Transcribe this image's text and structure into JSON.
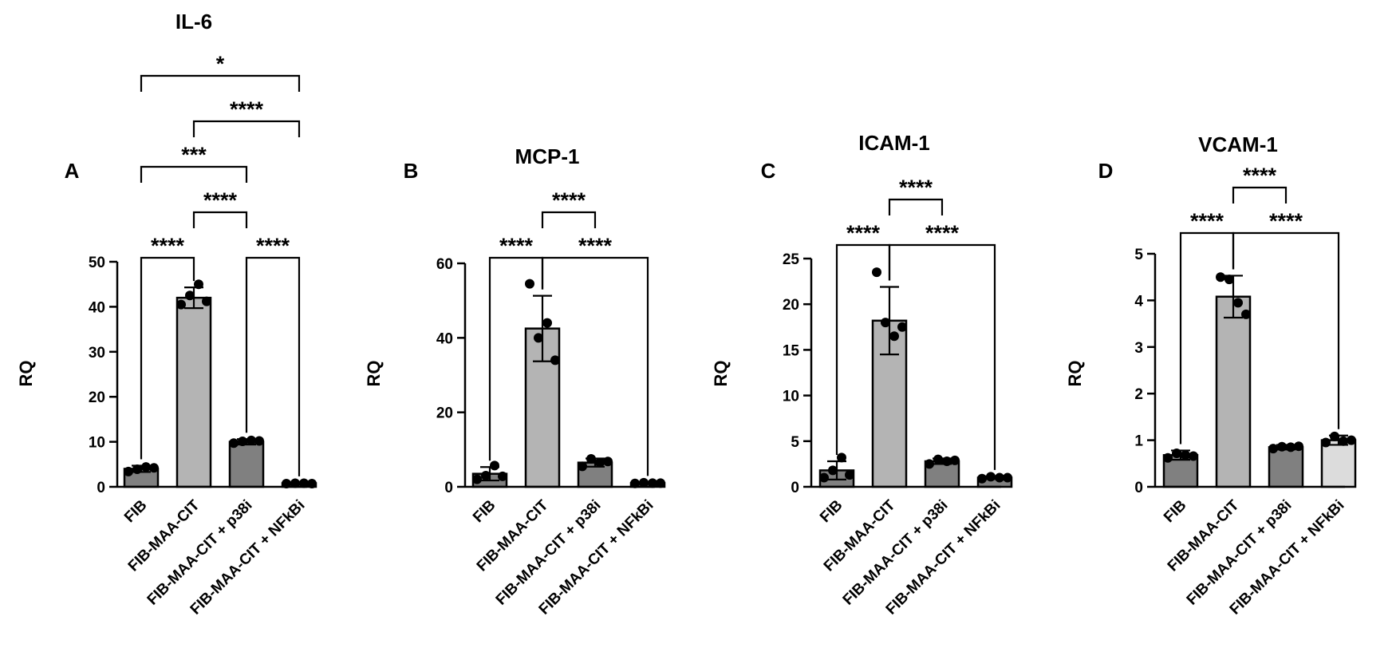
{
  "chart_data": [
    {
      "type": "bar",
      "panel_label": "A",
      "title": "IL-6",
      "ylabel": "RQ",
      "ylim": [
        0,
        50
      ],
      "yticks": [
        0,
        10,
        20,
        30,
        40,
        50
      ],
      "categories": [
        "FIB",
        "FIB-MAA-CIT",
        "FIB-MAA-CIT + p38i",
        "FIB-MAA-CIT + NFkBi"
      ],
      "values": [
        4.0,
        42.0,
        10.0,
        0.8
      ],
      "errors": [
        0.7,
        2.3,
        0.6,
        0.1
      ],
      "points": [
        [
          3.4,
          3.9,
          4.4,
          4.2
        ],
        [
          40.5,
          42.5,
          45.0,
          41.2
        ],
        [
          9.7,
          10.1,
          10.3,
          10.2
        ],
        [
          0.7,
          0.8,
          0.8,
          0.7
        ]
      ],
      "bar_colors": [
        "#808080",
        "#b4b4b4",
        "#808080",
        "#808080"
      ],
      "comparisons": [
        {
          "from": 0,
          "to": 1,
          "label": "****",
          "level": 0
        },
        {
          "from": 2,
          "to": 3,
          "label": "****",
          "level": 0
        },
        {
          "from": 1,
          "to": 2,
          "label": "****",
          "level": 1
        },
        {
          "from": 0,
          "to": 2,
          "label": "***",
          "level": 2
        },
        {
          "from": 1,
          "to": 3,
          "label": "****",
          "level": 3
        },
        {
          "from": 0,
          "to": 3,
          "label": "*",
          "level": 4
        }
      ]
    },
    {
      "type": "bar",
      "panel_label": "B",
      "title": "MCP-1",
      "ylabel": "RQ",
      "ylim": [
        0,
        60
      ],
      "yticks": [
        0,
        20,
        40,
        60
      ],
      "categories": [
        "FIB",
        "FIB-MAA-CIT",
        "FIB-MAA-CIT + p38i",
        "FIB-MAA-CIT + NFkBi"
      ],
      "values": [
        3.5,
        42.5,
        6.5,
        1.0
      ],
      "errors": [
        1.8,
        8.8,
        1.1,
        0.2
      ],
      "points": [
        [
          2.0,
          3.0,
          5.7,
          2.8
        ],
        [
          54.5,
          40.0,
          44.0,
          34.0
        ],
        [
          5.5,
          7.5,
          6.5,
          6.8
        ],
        [
          0.9,
          1.1,
          1.0,
          1.0
        ]
      ],
      "bar_colors": [
        "#808080",
        "#b4b4b4",
        "#808080",
        "#808080"
      ],
      "comparisons": [
        {
          "from": 0,
          "to": 1,
          "label": "****",
          "level": 0
        },
        {
          "from": 1,
          "to": 3,
          "label": "****",
          "level": 0
        },
        {
          "from": 1,
          "to": 2,
          "label": "****",
          "level": 1
        }
      ]
    },
    {
      "type": "bar",
      "panel_label": "C",
      "title": "ICAM-1",
      "ylabel": "RQ",
      "ylim": [
        0,
        25
      ],
      "yticks": [
        0,
        5,
        10,
        15,
        20,
        25
      ],
      "categories": [
        "FIB",
        "FIB-MAA-CIT",
        "FIB-MAA-CIT + p38i",
        "FIB-MAA-CIT + NFkBi"
      ],
      "values": [
        1.8,
        18.2,
        2.8,
        1.0
      ],
      "errors": [
        1.0,
        3.7,
        0.3,
        0.15
      ],
      "points": [
        [
          1.0,
          1.8,
          3.2,
          1.3
        ],
        [
          23.5,
          18.0,
          16.5,
          17.5
        ],
        [
          2.5,
          3.0,
          2.8,
          2.9
        ],
        [
          0.9,
          1.1,
          1.0,
          1.0
        ]
      ],
      "bar_colors": [
        "#808080",
        "#b4b4b4",
        "#808080",
        "#808080"
      ],
      "comparisons": [
        {
          "from": 0,
          "to": 1,
          "label": "****",
          "level": 0
        },
        {
          "from": 1,
          "to": 3,
          "label": "****",
          "level": 0
        },
        {
          "from": 1,
          "to": 2,
          "label": "****",
          "level": 1
        }
      ]
    },
    {
      "type": "bar",
      "panel_label": "D",
      "title": "VCAM-1",
      "ylabel": "RQ",
      "ylim": [
        0,
        5
      ],
      "yticks": [
        0,
        1,
        2,
        3,
        4,
        5
      ],
      "categories": [
        "FIB",
        "FIB-MAA-CIT",
        "FIB-MAA-CIT + p38i",
        "FIB-MAA-CIT + NFkBi"
      ],
      "values": [
        0.68,
        4.08,
        0.85,
        1.0
      ],
      "errors": [
        0.1,
        0.45,
        0.05,
        0.1
      ],
      "points": [
        [
          0.62,
          0.72,
          0.68,
          0.66
        ],
        [
          4.5,
          4.45,
          3.95,
          3.7
        ],
        [
          0.82,
          0.86,
          0.85,
          0.87
        ],
        [
          0.95,
          1.08,
          0.98,
          1.0
        ]
      ],
      "bar_colors": [
        "#808080",
        "#b4b4b4",
        "#808080",
        "#dcdcdc"
      ],
      "comparisons": [
        {
          "from": 0,
          "to": 1,
          "label": "****",
          "level": 0
        },
        {
          "from": 1,
          "to": 3,
          "label": "****",
          "level": 0
        },
        {
          "from": 1,
          "to": 2,
          "label": "****",
          "level": 1
        }
      ]
    }
  ]
}
